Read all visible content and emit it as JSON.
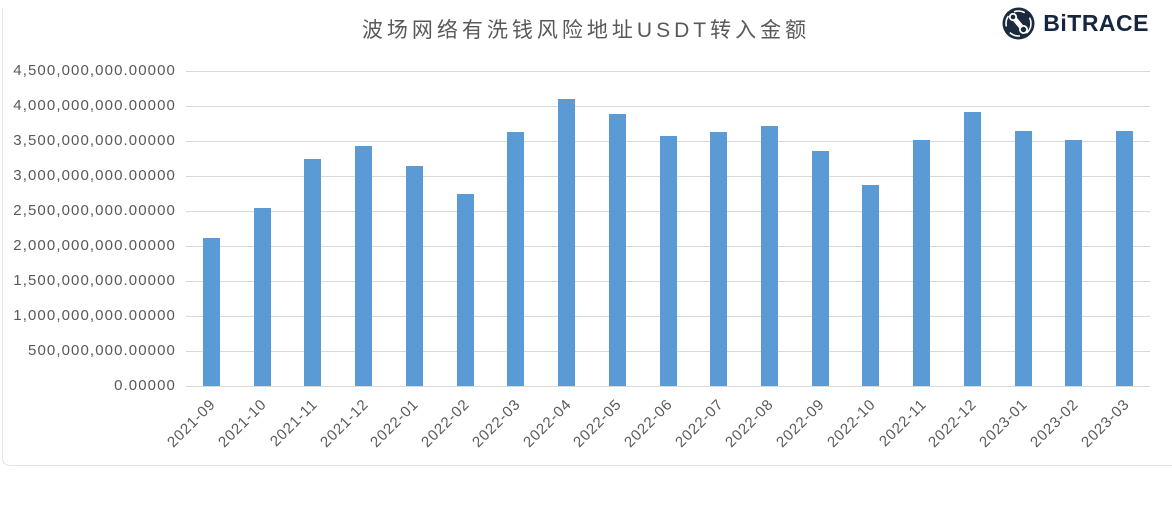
{
  "title": "波场网络有洗钱风险地址USDT转入金额",
  "logo": {
    "brand": "BiTRACE",
    "icon": "bitrace-globe-icon"
  },
  "colors": {
    "bar": "#5B9BD5",
    "grid": "#D9D9D9",
    "axis_text": "#595959",
    "title_text": "#595959",
    "logo_text": "#17263F",
    "divider": "#E4E4E4"
  },
  "chart_data": {
    "type": "bar",
    "title": "波场网络有洗钱风险地址USDT转入金额",
    "categories": [
      "2021-09",
      "2021-10",
      "2021-11",
      "2021-12",
      "2022-01",
      "2022-02",
      "2022-03",
      "2022-04",
      "2022-05",
      "2022-06",
      "2022-07",
      "2022-08",
      "2022-09",
      "2022-10",
      "2022-11",
      "2022-12",
      "2023-01",
      "2023-02",
      "2023-03"
    ],
    "values": [
      2110000000,
      2550000000,
      3240000000,
      3430000000,
      3140000000,
      2740000000,
      3630000000,
      4100000000,
      3880000000,
      3570000000,
      3630000000,
      3720000000,
      3360000000,
      2870000000,
      3520000000,
      3910000000,
      3640000000,
      3520000000,
      3650000000
    ],
    "ylim": [
      0,
      4500000000
    ],
    "ytick_step": 500000000,
    "ytick_decimals": 5,
    "grid": true,
    "legend": false,
    "bar_color": "#5B9BD5"
  }
}
